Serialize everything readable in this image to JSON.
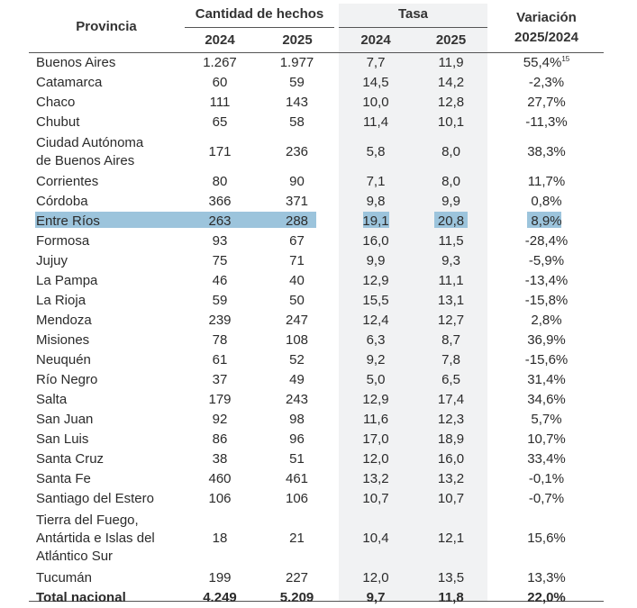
{
  "header": {
    "provincia": "Provincia",
    "cantidad": "Cantidad de hechos",
    "tasa": "Tasa",
    "variacion_line1": "Variación",
    "variacion_line2": "2025/2024",
    "year_2024": "2024",
    "year_2025": "2025"
  },
  "rows": [
    {
      "name": "Buenos Aires",
      "c2024": "1.267",
      "c2025": "1.977",
      "t2024": "7,7",
      "t2025": "11,9",
      "var": "55,4%",
      "note": "15"
    },
    {
      "name": "Catamarca",
      "c2024": "60",
      "c2025": "59",
      "t2024": "14,5",
      "t2025": "14,2",
      "var": "-2,3%"
    },
    {
      "name": "Chaco",
      "c2024": "111",
      "c2025": "143",
      "t2024": "10,0",
      "t2025": "12,8",
      "var": "27,7%"
    },
    {
      "name": "Chubut",
      "c2024": "65",
      "c2025": "58",
      "t2024": "11,4",
      "t2025": "10,1",
      "var": "-11,3%"
    },
    {
      "name_lines": [
        "Ciudad Autónoma",
        "de Buenos Aires"
      ],
      "c2024": "171",
      "c2025": "236",
      "t2024": "5,8",
      "t2025": "8,0",
      "var": "38,3%"
    },
    {
      "name": "Corrientes",
      "c2024": "80",
      "c2025": "90",
      "t2024": "7,1",
      "t2025": "8,0",
      "var": "11,7%"
    },
    {
      "name": "Córdoba",
      "c2024": "366",
      "c2025": "371",
      "t2024": "9,8",
      "t2025": "9,9",
      "var": "0,8%"
    },
    {
      "name": "Entre Ríos",
      "c2024": "263",
      "c2025": "288",
      "t2024": "19,1",
      "t2025": "20,8",
      "var": "8,9%",
      "highlight": true
    },
    {
      "name": "Formosa",
      "c2024": "93",
      "c2025": "67",
      "t2024": "16,0",
      "t2025": "11,5",
      "var": "-28,4%"
    },
    {
      "name": "Jujuy",
      "c2024": "75",
      "c2025": "71",
      "t2024": "9,9",
      "t2025": "9,3",
      "var": "-5,9%"
    },
    {
      "name": "La Pampa",
      "c2024": "46",
      "c2025": "40",
      "t2024": "12,9",
      "t2025": "11,1",
      "var": "-13,4%"
    },
    {
      "name": "La Rioja",
      "c2024": "59",
      "c2025": "50",
      "t2024": "15,5",
      "t2025": "13,1",
      "var": "-15,8%"
    },
    {
      "name": "Mendoza",
      "c2024": "239",
      "c2025": "247",
      "t2024": "12,4",
      "t2025": "12,7",
      "var": "2,8%"
    },
    {
      "name": "Misiones",
      "c2024": "78",
      "c2025": "108",
      "t2024": "6,3",
      "t2025": "8,7",
      "var": "36,9%"
    },
    {
      "name": "Neuquén",
      "c2024": "61",
      "c2025": "52",
      "t2024": "9,2",
      "t2025": "7,8",
      "var": "-15,6%"
    },
    {
      "name": "Río Negro",
      "c2024": "37",
      "c2025": "49",
      "t2024": "5,0",
      "t2025": "6,5",
      "var": "31,4%"
    },
    {
      "name": "Salta",
      "c2024": "179",
      "c2025": "243",
      "t2024": "12,9",
      "t2025": "17,4",
      "var": "34,6%"
    },
    {
      "name": "San Juan",
      "c2024": "92",
      "c2025": "98",
      "t2024": "11,6",
      "t2025": "12,3",
      "var": "5,7%"
    },
    {
      "name": "San Luis",
      "c2024": "86",
      "c2025": "96",
      "t2024": "17,0",
      "t2025": "18,9",
      "var": "10,7%"
    },
    {
      "name": "Santa Cruz",
      "c2024": "38",
      "c2025": "51",
      "t2024": "12,0",
      "t2025": "16,0",
      "var": "33,4%"
    },
    {
      "name": "Santa Fe",
      "c2024": "460",
      "c2025": "461",
      "t2024": "13,2",
      "t2025": "13,2",
      "var": "-0,1%"
    },
    {
      "name": "Santiago del Estero",
      "c2024": "106",
      "c2025": "106",
      "t2024": "10,7",
      "t2025": "10,7",
      "var": "-0,7%"
    },
    {
      "name_lines": [
        "Tierra del Fuego,",
        "Antártida e Islas del",
        "Atlántico Sur"
      ],
      "c2024": "18",
      "c2025": "21",
      "t2024": "10,4",
      "t2025": "12,1",
      "var": "15,6%"
    },
    {
      "name": "Tucumán",
      "c2024": "199",
      "c2025": "227",
      "t2024": "12,0",
      "t2025": "13,5",
      "var": "13,3%"
    }
  ],
  "total": {
    "name": "Total nacional",
    "c2024": "4.249",
    "c2025": "5.209",
    "t2024": "9,7",
    "t2025": "11,8",
    "var": "22,0%"
  },
  "colors": {
    "highlight": "#9cc4dc",
    "tasa_background": "#f1f2f3",
    "rule": "#555555"
  }
}
